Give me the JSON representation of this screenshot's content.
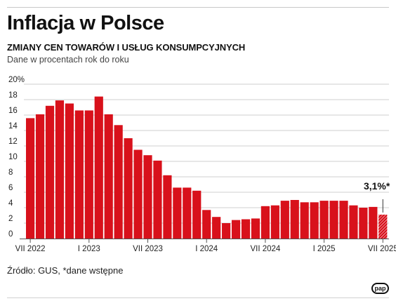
{
  "header": {
    "title": "Inflacja w Polsce",
    "subtitle": "ZMIANY CEN TOWARÓW I USŁUG KONSUMPCYJNYCH",
    "note": "Dane w procentach rok do roku"
  },
  "footer": {
    "source": "Źródło: GUS, *dane wstępne",
    "logo": "pap"
  },
  "colors": {
    "bar": "#d8111b",
    "grid": "#cfcfcf",
    "axis": "#555555",
    "text": "#222222"
  },
  "chart_data": {
    "type": "bar",
    "title": "Inflacja w Polsce",
    "subtitle": "ZMIANY CEN TOWARÓW I USŁUG KONSUMPCYJNYCH",
    "ylabel": "",
    "xlabel": "",
    "ylim": [
      0,
      20
    ],
    "y_ticks": [
      "0",
      "2",
      "4",
      "6",
      "8",
      "10",
      "12",
      "14",
      "16",
      "18",
      "20%"
    ],
    "grid": true,
    "x_tick_labels": [
      {
        "index": 0,
        "label": "VII 2022"
      },
      {
        "index": 6,
        "label": "I 2023"
      },
      {
        "index": 12,
        "label": "VII 2023"
      },
      {
        "index": 18,
        "label": "I 2024"
      },
      {
        "index": 24,
        "label": "VII 2024"
      },
      {
        "index": 30,
        "label": "I 2025"
      },
      {
        "index": 36,
        "label": "VII 2025"
      }
    ],
    "categories": [
      "VII 2022",
      "VIII 2022",
      "IX 2022",
      "X 2022",
      "XI 2022",
      "XII 2022",
      "I 2023",
      "II 2023",
      "III 2023",
      "IV 2023",
      "V 2023",
      "VI 2023",
      "VII 2023",
      "VIII 2023",
      "IX 2023",
      "X 2023",
      "XI 2023",
      "XII 2023",
      "I 2024",
      "II 2024",
      "III 2024",
      "IV 2024",
      "V 2024",
      "VI 2024",
      "VII 2024",
      "VIII 2024",
      "IX 2024",
      "X 2024",
      "XI 2024",
      "XII 2024",
      "I 2025",
      "II 2025",
      "III 2025",
      "IV 2025",
      "V 2025",
      "VI 2025",
      "VII 2025"
    ],
    "values": [
      15.6,
      16.1,
      17.2,
      17.9,
      17.5,
      16.6,
      16.6,
      18.4,
      16.1,
      14.7,
      13.0,
      11.5,
      10.8,
      10.1,
      8.2,
      6.6,
      6.6,
      6.2,
      3.7,
      2.8,
      2.0,
      2.4,
      2.5,
      2.6,
      4.2,
      4.3,
      4.9,
      5.0,
      4.7,
      4.7,
      4.9,
      4.9,
      4.9,
      4.3,
      4.0,
      4.1,
      3.1
    ],
    "preliminary_index": 36,
    "annotation": "3,1%*"
  }
}
